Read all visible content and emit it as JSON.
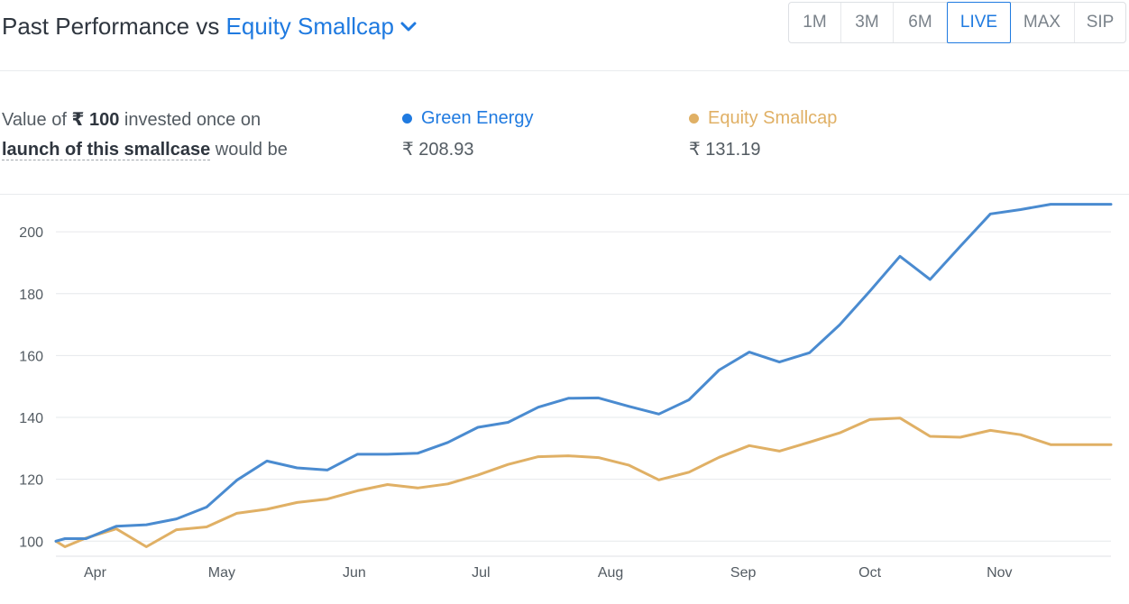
{
  "header": {
    "title_prefix": "Past Performance vs",
    "benchmark_label": "Equity Smallcap",
    "periods": [
      "1M",
      "3M",
      "6M",
      "LIVE",
      "MAX",
      "SIP"
    ],
    "active_period": "LIVE"
  },
  "summary": {
    "text_1": "Value of",
    "amount": "₹ 100",
    "text_2": "invested once on",
    "link_text": "launch of this smallcase",
    "text_3": "would be",
    "green_energy": {
      "label": "Green Energy",
      "value": "₹ 208.93"
    },
    "equity_smallcap": {
      "label": "Equity Smallcap",
      "value": "₹ 131.19"
    }
  },
  "colors": {
    "accent": "#1f7ae0",
    "series_1": "#4a8bd0",
    "series_2": "#e0b065"
  },
  "chart_data": {
    "type": "line",
    "x": [
      0,
      0.3,
      1,
      2,
      3,
      4,
      5,
      6,
      7,
      8,
      9,
      10,
      11,
      12,
      13,
      14,
      15,
      16,
      17,
      18,
      19,
      20,
      21,
      22,
      23,
      24,
      25,
      26,
      27,
      28,
      29,
      30,
      31,
      32,
      33,
      34,
      35
    ],
    "x_ticks": [
      {
        "x": 1.3,
        "label": "Apr"
      },
      {
        "x": 5.5,
        "label": "May"
      },
      {
        "x": 9.9,
        "label": "Jun"
      },
      {
        "x": 14.1,
        "label": "Jul"
      },
      {
        "x": 18.4,
        "label": "Aug"
      },
      {
        "x": 22.8,
        "label": "Sep"
      },
      {
        "x": 27,
        "label": "Oct"
      },
      {
        "x": 31.3,
        "label": "Nov"
      }
    ],
    "series": [
      {
        "name": "Green Energy",
        "values": [
          100,
          100.8,
          100.8,
          104.8,
          105.3,
          107.2,
          111,
          119.7,
          125.9,
          123.7,
          123,
          128.1,
          128.1,
          128.4,
          131.9,
          136.8,
          138.4,
          143.3,
          146.2,
          146.3,
          143.6,
          141.1,
          145.7,
          155.3,
          161.1,
          157.9,
          160.9,
          169.9,
          180.8,
          192.1,
          184.6,
          195.3,
          205.8,
          207.2,
          208.9,
          208.9,
          208.9
        ]
      },
      {
        "name": "Equity Smallcap",
        "values": [
          100,
          98.2,
          101,
          104,
          98.2,
          103.7,
          104.6,
          109,
          110.3,
          112.5,
          113.6,
          116.3,
          118.3,
          117.2,
          118.5,
          121.4,
          124.8,
          127.3,
          127.6,
          127,
          124.6,
          119.8,
          122.3,
          127.1,
          130.9,
          129.1,
          132,
          135,
          139.3,
          139.8,
          133.9,
          133.6,
          135.8,
          134.4,
          131.2,
          131.2,
          131.2
        ]
      }
    ],
    "y_ticks": [
      100,
      120,
      140,
      160,
      180,
      200
    ],
    "ylim": [
      96,
      212
    ],
    "grid": true
  }
}
